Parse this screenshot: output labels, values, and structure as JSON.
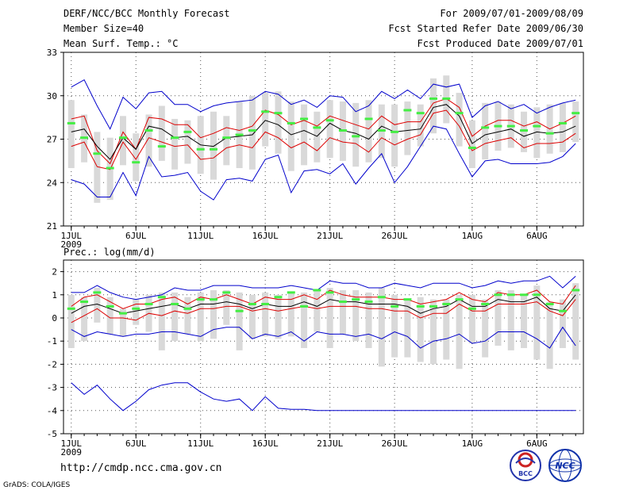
{
  "header": {
    "title": "DERF/NCC/BCC Monthly Forecast",
    "member_size": "Member Size=40",
    "variable": "Mean Surf. Temp.: °C",
    "for_period": "For 2009/07/01-2009/08/09",
    "fcst_started": "Fcst Started Refer Date 2009/06/30",
    "fcst_produced": "Fcst Produced Date 2009/07/01"
  },
  "footer": {
    "url": "http://cmdp.ncc.cma.gov.cn",
    "credit": "GrADS: COLA/IGES",
    "logo_bcc": "BCC",
    "logo_ncc": "NCC"
  },
  "colors": {
    "box": "#d9d9d9",
    "median": "#44ee44",
    "mean": "#000000",
    "spread": "#dd0000",
    "extreme": "#0000cc",
    "grid": "#555555"
  },
  "chart_data": [
    {
      "type": "line",
      "title": "Mean Surf. Temp.: °C",
      "xlabel": "2009",
      "ylabel": "",
      "xlim": [
        1,
        40
      ],
      "ylim": [
        21,
        33
      ],
      "yticks": [
        21,
        24,
        27,
        30,
        33
      ],
      "xticks": [
        {
          "day": 1,
          "label": "1JUL"
        },
        {
          "day": 6,
          "label": "6JUL"
        },
        {
          "day": 11,
          "label": "11JUL"
        },
        {
          "day": 16,
          "label": "16JUL"
        },
        {
          "day": 21,
          "label": "21JUL"
        },
        {
          "day": 26,
          "label": "26JUL"
        },
        {
          "day": 32,
          "label": "1AUG"
        },
        {
          "day": 37,
          "label": "6AUG"
        }
      ],
      "year_label": "2009",
      "grid": true,
      "series": [
        {
          "name": "max",
          "values": [
            30.6,
            31.1,
            29.3,
            27.7,
            29.9,
            29.1,
            30.2,
            30.3,
            29.4,
            29.4,
            28.9,
            29.3,
            29.5,
            29.6,
            29.7,
            30.3,
            30.1,
            29.4,
            29.7,
            29.2,
            30.0,
            29.9,
            28.9,
            29.3,
            30.3,
            29.8,
            30.4,
            29.8,
            30.8,
            30.6,
            30.8,
            28.5,
            29.3,
            29.6,
            29.1,
            29.4,
            28.8,
            29.2,
            29.5,
            29.7
          ]
        },
        {
          "name": "upper",
          "values": [
            28.4,
            28.6,
            26.2,
            25.3,
            27.5,
            26.3,
            28.5,
            28.4,
            28.0,
            28.0,
            27.1,
            27.4,
            27.8,
            27.6,
            27.9,
            29.0,
            28.7,
            28.0,
            28.3,
            27.9,
            28.6,
            28.3,
            28.0,
            27.7,
            28.6,
            28.0,
            28.2,
            28.2,
            29.5,
            29.8,
            29.2,
            27.2,
            27.9,
            28.3,
            28.3,
            27.9,
            28.2,
            27.7,
            28.1,
            28.6
          ]
        },
        {
          "name": "mean",
          "values": [
            27.5,
            27.7,
            26.5,
            25.6,
            27.1,
            26.3,
            27.9,
            27.7,
            27.1,
            27.2,
            26.6,
            26.5,
            27.1,
            27.2,
            27.3,
            28.3,
            28.0,
            27.3,
            27.6,
            27.2,
            28.1,
            27.6,
            27.4,
            27.0,
            27.9,
            27.5,
            27.6,
            27.7,
            29.2,
            29.4,
            28.6,
            26.7,
            27.3,
            27.5,
            27.7,
            27.2,
            27.5,
            27.4,
            27.5,
            27.9
          ]
        },
        {
          "name": "lower",
          "values": [
            26.5,
            26.8,
            25.1,
            24.9,
            26.8,
            25.6,
            27.1,
            26.8,
            26.5,
            26.6,
            25.6,
            25.7,
            26.4,
            26.6,
            26.4,
            27.5,
            27.1,
            26.4,
            26.8,
            26.2,
            27.1,
            26.8,
            26.7,
            26.1,
            27.1,
            26.6,
            27.0,
            27.3,
            28.8,
            29.0,
            27.9,
            26.2,
            26.7,
            26.9,
            27.1,
            26.4,
            26.7,
            26.7,
            26.8,
            27.4
          ]
        },
        {
          "name": "min",
          "values": [
            24.2,
            23.9,
            23.0,
            23.0,
            24.7,
            23.1,
            25.8,
            24.4,
            24.5,
            24.7,
            23.4,
            22.8,
            24.2,
            24.3,
            24.1,
            25.6,
            25.9,
            23.3,
            24.8,
            24.9,
            24.6,
            25.3,
            23.9,
            25.0,
            26.0,
            24.0,
            25.1,
            26.5,
            27.9,
            27.7,
            26.0,
            24.4,
            25.5,
            25.6,
            25.3,
            25.3,
            25.3,
            25.4,
            25.8,
            26.7
          ]
        },
        {
          "name": "median",
          "values": [
            28.1,
            27.1,
            26.0,
            25.0,
            27.1,
            25.4,
            27.6,
            26.5,
            27.1,
            27.5,
            26.3,
            26.3,
            27.1,
            27.3,
            27.6,
            28.9,
            28.8,
            28.1,
            28.4,
            27.8,
            28.3,
            27.6,
            27.2,
            28.4,
            27.6,
            27.5,
            29.0,
            28.8,
            29.8,
            29.8,
            28.8,
            26.4,
            27.8,
            27.9,
            27.9,
            27.6,
            27.9,
            27.4,
            28.1,
            28.8
          ]
        },
        {
          "name": "box_high",
          "values": [
            29.7,
            28.7,
            27.5,
            27.1,
            28.6,
            27.4,
            28.7,
            29.3,
            28.4,
            28.3,
            28.6,
            28.9,
            28.6,
            29.6,
            30.0,
            30.2,
            30.3,
            29.6,
            29.4,
            28.9,
            29.7,
            29.6,
            29.5,
            29.7,
            29.4,
            29.4,
            29.6,
            29.4,
            31.2,
            31.4,
            30.2,
            28.3,
            29.5,
            29.6,
            29.4,
            28.9,
            29.2,
            29.4,
            29.5,
            29.6
          ]
        },
        {
          "name": "box_low",
          "values": [
            25.0,
            25.4,
            22.6,
            22.8,
            25.2,
            24.1,
            25.1,
            25.5,
            24.9,
            25.3,
            24.6,
            24.2,
            25.2,
            25.0,
            24.9,
            26.5,
            26.0,
            24.8,
            25.2,
            25.4,
            25.7,
            25.5,
            25.1,
            25.4,
            25.7,
            25.1,
            25.9,
            26.5,
            27.4,
            28.1,
            26.5,
            25.0,
            25.6,
            26.2,
            26.4,
            26.1,
            25.7,
            26.0,
            26.1,
            26.8
          ]
        }
      ]
    },
    {
      "type": "line",
      "title": "Prec.: log(mm/d)",
      "xlabel": "2009",
      "ylabel": "",
      "xlim": [
        1,
        40
      ],
      "ylim": [
        -5,
        2.5
      ],
      "yticks": [
        -5,
        -4,
        -3,
        -2,
        -1,
        0,
        1,
        2
      ],
      "xticks": [
        {
          "day": 1,
          "label": "1JUL"
        },
        {
          "day": 6,
          "label": "6JUL"
        },
        {
          "day": 11,
          "label": "11JUL"
        },
        {
          "day": 16,
          "label": "16JUL"
        },
        {
          "day": 21,
          "label": "21JUL"
        },
        {
          "day": 26,
          "label": "26JUL"
        },
        {
          "day": 32,
          "label": "1AUG"
        },
        {
          "day": 37,
          "label": "6AUG"
        }
      ],
      "year_label": "2009",
      "grid": true,
      "series": [
        {
          "name": "max",
          "values": [
            1.1,
            1.1,
            1.4,
            1.1,
            0.9,
            0.8,
            0.9,
            1.0,
            1.3,
            1.2,
            1.2,
            1.4,
            1.4,
            1.4,
            1.3,
            1.3,
            1.3,
            1.4,
            1.3,
            1.2,
            1.6,
            1.5,
            1.5,
            1.3,
            1.3,
            1.5,
            1.4,
            1.3,
            1.5,
            1.5,
            1.5,
            1.3,
            1.4,
            1.6,
            1.5,
            1.6,
            1.6,
            1.8,
            1.3,
            1.8
          ]
        },
        {
          "name": "upper",
          "values": [
            0.5,
            0.9,
            1.0,
            0.7,
            0.4,
            0.6,
            0.6,
            0.8,
            0.9,
            0.6,
            0.9,
            0.8,
            1.0,
            0.8,
            0.6,
            0.9,
            0.8,
            0.8,
            1.0,
            0.8,
            1.2,
            1.0,
            0.9,
            0.9,
            0.9,
            0.8,
            0.8,
            0.6,
            0.7,
            0.8,
            1.1,
            0.8,
            0.7,
            1.1,
            1.0,
            1.0,
            1.2,
            0.7,
            0.6,
            1.4
          ]
        },
        {
          "name": "mean",
          "values": [
            0.2,
            0.5,
            0.6,
            0.4,
            0.2,
            0.3,
            0.4,
            0.5,
            0.6,
            0.4,
            0.6,
            0.6,
            0.7,
            0.6,
            0.4,
            0.6,
            0.5,
            0.5,
            0.7,
            0.5,
            0.8,
            0.7,
            0.7,
            0.6,
            0.6,
            0.6,
            0.5,
            0.2,
            0.4,
            0.5,
            0.8,
            0.5,
            0.5,
            0.8,
            0.7,
            0.7,
            0.9,
            0.4,
            0.3,
            1.0
          ]
        },
        {
          "name": "lower",
          "values": [
            -0.2,
            0.1,
            0.4,
            0.0,
            0.0,
            -0.1,
            0.2,
            0.1,
            0.3,
            0.2,
            0.4,
            0.4,
            0.5,
            0.5,
            0.3,
            0.4,
            0.3,
            0.4,
            0.5,
            0.4,
            0.5,
            0.5,
            0.5,
            0.4,
            0.4,
            0.3,
            0.3,
            0.0,
            0.2,
            0.2,
            0.6,
            0.3,
            0.3,
            0.6,
            0.6,
            0.6,
            0.7,
            0.3,
            0.1,
            0.8
          ]
        },
        {
          "name": "min",
          "values": [
            -0.5,
            -0.8,
            -0.6,
            -0.7,
            -0.8,
            -0.7,
            -0.7,
            -0.6,
            -0.6,
            -0.7,
            -0.8,
            -0.5,
            -0.4,
            -0.4,
            -0.9,
            -0.7,
            -0.8,
            -0.6,
            -1.0,
            -0.6,
            -0.7,
            -0.7,
            -0.8,
            -0.7,
            -0.9,
            -0.6,
            -0.8,
            -1.3,
            -1.0,
            -0.9,
            -0.7,
            -1.1,
            -1.0,
            -0.6,
            -0.6,
            -0.6,
            -0.9,
            -1.3,
            -0.4,
            -1.2
          ]
        },
        {
          "name": "lowest",
          "values": [
            -2.8,
            -3.3,
            -2.9,
            -3.5,
            -4.0,
            -3.6,
            -3.1,
            -2.9,
            -2.8,
            -2.8,
            -3.2,
            -3.5,
            -3.6,
            -3.5,
            -4.0,
            -3.4,
            -3.9,
            -3.95,
            -3.95,
            -4.0,
            -4.0,
            -4.0,
            -4.0,
            -4.0,
            -4.0,
            -4.0,
            -4.0,
            -4.0,
            -4.0,
            -4.0,
            -4.0,
            -4.0,
            -4.0,
            -4.0,
            -4.0,
            -4.0,
            -4.0,
            -4.0,
            -4.0,
            -4.0
          ]
        },
        {
          "name": "median",
          "values": [
            0.4,
            0.7,
            1.1,
            0.5,
            0.2,
            0.4,
            0.6,
            0.9,
            0.6,
            0.4,
            0.8,
            0.8,
            1.1,
            0.3,
            0.6,
            0.6,
            0.9,
            1.1,
            0.5,
            1.2,
            1.1,
            0.7,
            0.8,
            0.7,
            0.9,
            0.5,
            0.8,
            0.5,
            0.5,
            0.6,
            0.8,
            0.4,
            0.6,
            1.0,
            1.0,
            1.0,
            1.0,
            0.6,
            0.3,
            1.2
          ]
        },
        {
          "name": "box_high",
          "values": [
            1.0,
            0.9,
            1.3,
            0.9,
            0.4,
            0.8,
            1.0,
            1.1,
            1.1,
            0.9,
            1.1,
            1.2,
            1.2,
            1.1,
            1.0,
            1.1,
            1.0,
            1.1,
            1.1,
            1.2,
            1.3,
            1.2,
            1.2,
            1.1,
            1.3,
            1.0,
            0.8,
            0.9,
            0.8,
            0.8,
            1.0,
            1.0,
            0.8,
            1.2,
            1.2,
            1.0,
            1.4,
            0.7,
            0.8,
            1.5
          ]
        },
        {
          "name": "box_low",
          "values": [
            -1.3,
            -1.0,
            -0.2,
            -0.7,
            -0.8,
            -0.3,
            -0.6,
            -1.4,
            -1.0,
            -0.7,
            -1.0,
            -0.9,
            -0.3,
            -1.4,
            -0.9,
            -0.8,
            -0.9,
            -0.8,
            -1.3,
            -0.6,
            -1.3,
            -0.7,
            -1.0,
            -1.3,
            -2.1,
            -1.7,
            -1.7,
            -1.9,
            -2.0,
            -1.8,
            -2.2,
            -1.1,
            -1.7,
            -1.2,
            -1.4,
            -1.3,
            -1.8,
            -2.2,
            -1.3,
            -1.8
          ]
        }
      ]
    }
  ]
}
